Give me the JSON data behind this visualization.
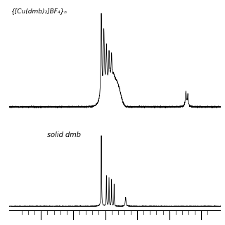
{
  "title1": "{[Cu(dmb)₂]BF₄}ₙ",
  "title2": "solid dmb",
  "background_color": "#ffffff",
  "text_color": "#000000",
  "line_color": "#000000",
  "fig_width": 3.2,
  "fig_height": 3.2,
  "dpi": 100
}
